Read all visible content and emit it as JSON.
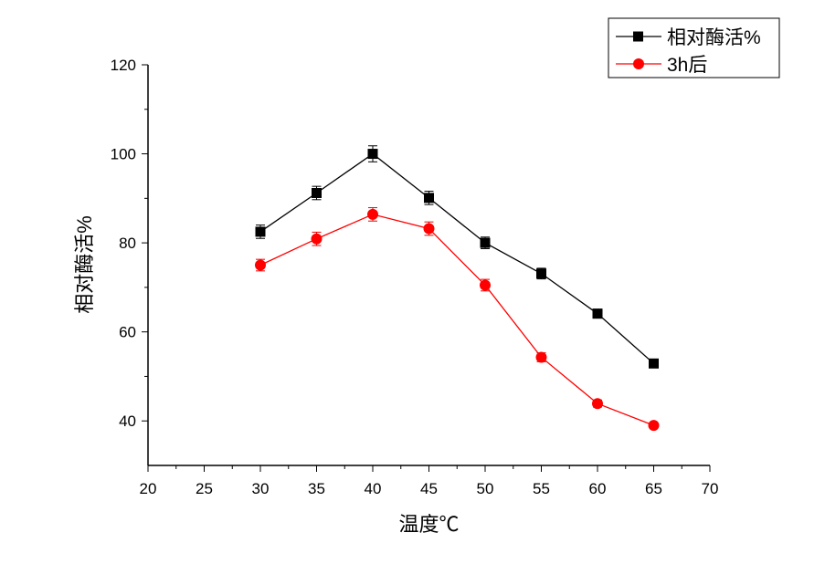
{
  "chart_data": {
    "type": "line",
    "title": "",
    "xlabel": "温度℃",
    "ylabel": "相对酶活%",
    "xlim": [
      20,
      70
    ],
    "ylim": [
      30,
      120
    ],
    "xticks": [
      20,
      25,
      30,
      35,
      40,
      45,
      50,
      55,
      60,
      65,
      70
    ],
    "yticks": [
      40,
      60,
      80,
      100,
      120
    ],
    "x": [
      30,
      35,
      40,
      45,
      50,
      55,
      60,
      65
    ],
    "legend_position": "top-right",
    "series": [
      {
        "name": "相对酶活%",
        "color": "#000000",
        "marker": "square",
        "values": [
          82.5,
          91.2,
          100,
          90.1,
          80,
          73.1,
          64.1,
          52.9
        ],
        "errors": [
          1.5,
          1.5,
          1.8,
          1.5,
          1.3,
          1.2,
          1.0,
          0.8
        ]
      },
      {
        "name": "3h后",
        "color": "#ff0000",
        "marker": "circle",
        "values": [
          75,
          80.9,
          86.4,
          83.2,
          70.5,
          54.3,
          43.9,
          39
        ],
        "errors": [
          1.3,
          1.5,
          1.5,
          1.5,
          1.3,
          1.0,
          0.8,
          0.6
        ]
      }
    ]
  }
}
